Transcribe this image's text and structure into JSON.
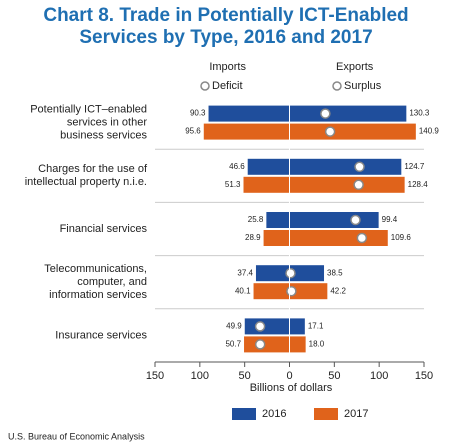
{
  "chart_data": {
    "type": "diverging-bar",
    "title_lines": [
      "Chart 8. Trade in Potentially ICT-Enabled",
      "Services by Type, 2016 and 2017"
    ],
    "left_heading": "Imports",
    "right_heading": "Exports",
    "left_marker_label": "Deficit",
    "right_marker_label": "Surplus",
    "categories": [
      [
        "Potentially ICT–enabled",
        "services in other",
        "business services"
      ],
      [
        "Charges for the use of",
        "intellectual property n.i.e."
      ],
      [
        "Financial services"
      ],
      [
        "Telecommunications,",
        "computer, and",
        "information services"
      ],
      [
        "Insurance services"
      ]
    ],
    "series": [
      {
        "name": "2016",
        "color": "#1f4e9c",
        "imports": [
          90.3,
          46.6,
          25.8,
          37.4,
          49.9
        ],
        "exports": [
          130.3,
          124.7,
          99.4,
          38.5,
          17.1
        ],
        "balance": [
          40.0,
          78.1,
          73.6,
          1.1,
          -32.8
        ]
      },
      {
        "name": "2017",
        "color": "#e0631b",
        "imports": [
          95.6,
          51.3,
          28.9,
          40.1,
          50.7
        ],
        "exports": [
          140.9,
          128.4,
          109.6,
          42.2,
          18.0
        ],
        "exports_value_labels": [
          "140.9",
          "128.4",
          "109.6",
          "42.2",
          "18.0"
        ],
        "balance": [
          45.3,
          77.1,
          80.7,
          2.1,
          -32.7
        ]
      }
    ],
    "xlim": [
      -150,
      150
    ],
    "xticks": [
      {
        "value": -150,
        "label": "150"
      },
      {
        "value": -100,
        "label": "100"
      },
      {
        "value": -50,
        "label": "50"
      },
      0,
      50,
      100,
      150
    ],
    "xlabel": "Billions of dollars",
    "source": "U.S. Bureau of Economic Analysis"
  }
}
